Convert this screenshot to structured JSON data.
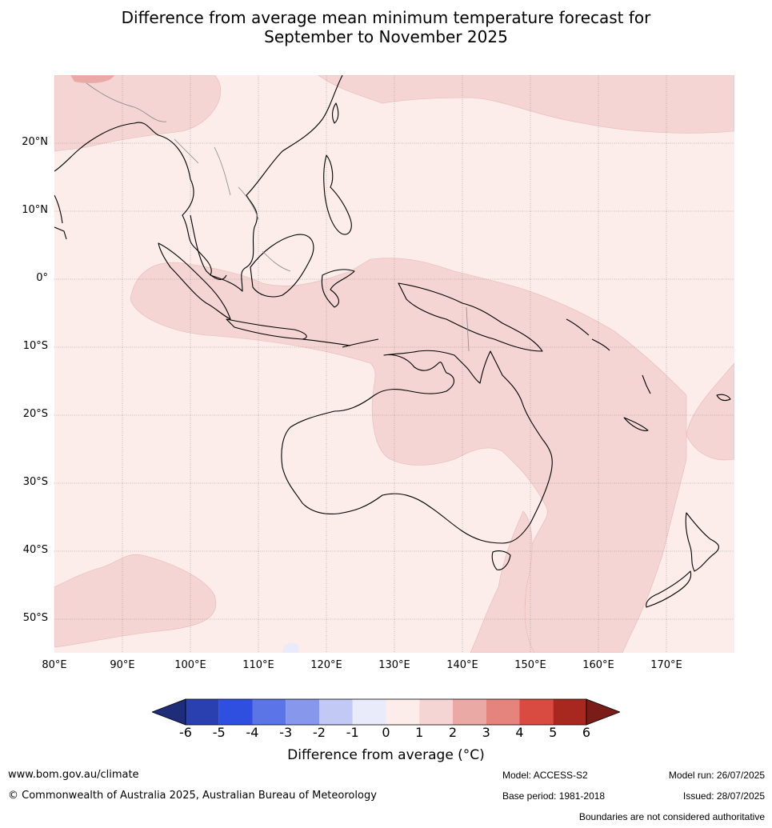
{
  "title_line1": "Difference from average mean minimum temperature forecast for",
  "title_line2": "September to November 2025",
  "lat_ticks": [
    "20°N",
    "10°N",
    "0°",
    "10°S",
    "20°S",
    "30°S",
    "40°S",
    "50°S"
  ],
  "lon_ticks": [
    "80°E",
    "90°E",
    "100°E",
    "110°E",
    "120°E",
    "130°E",
    "140°E",
    "150°E",
    "160°E",
    "170°E"
  ],
  "colorbar": {
    "labels": [
      "-6",
      "-5",
      "-4",
      "-3",
      "-2",
      "-1",
      "0",
      "1",
      "2",
      "3",
      "4",
      "5",
      "6"
    ],
    "colors": [
      "#1f2c7a",
      "#2a3fb0",
      "#2e4fe0",
      "#5b74e6",
      "#8798ec",
      "#c2c9f5",
      "#e9ebfb",
      "#fcecea",
      "#f5d5d3",
      "#eaa9a5",
      "#e5837d",
      "#d94a40",
      "#a8281f",
      "#7a1c17"
    ],
    "title": "Difference from average (°C)"
  },
  "legend_values": {
    "land": "#ffffff",
    "zero_to_one": "#fcecea",
    "one_to_two": "#f5d5d3",
    "two_to_three": "#eaa9a5"
  },
  "footer": {
    "website": "www.bom.gov.au/climate",
    "copyright": "© Commonwealth of Australia 2025, Australian Bureau of Meteorology",
    "model": "Model: ACCESS-S2",
    "base_period": "Base period: 1981-2018",
    "model_run": "Model run: 26/07/2025",
    "issued": "Issued: 28/07/2025",
    "disclaimer": "Boundaries are not considered authoritative"
  }
}
